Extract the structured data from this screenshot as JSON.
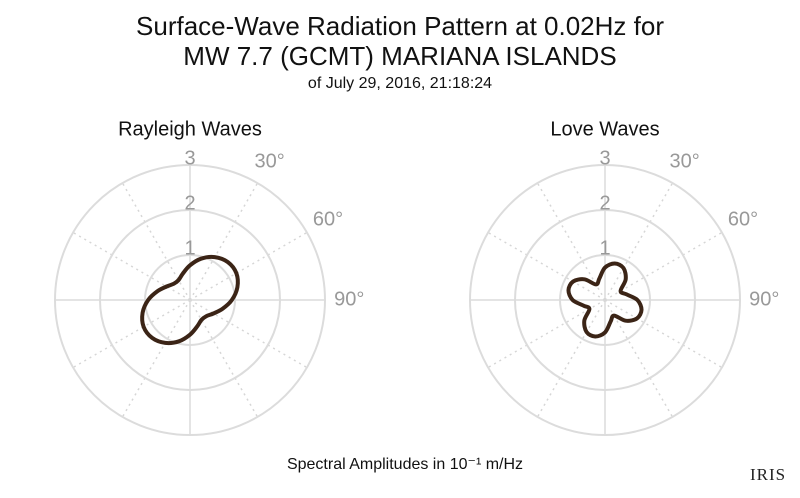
{
  "title": [
    "Surface-Wave Radiation Pattern at 0.02Hz for",
    "MW 7.7 (GCMT) MARIANA ISLANDS"
  ],
  "subtitle": "of July 29, 2016, 21:18:24",
  "caption": "Spectral Amplitudes in 10⁻¹ m/Hz",
  "logo": "IRIS",
  "chart_data": [
    {
      "type": "polar",
      "title": "Rayleigh Waves",
      "color": "#3b2416",
      "theta": [
        0,
        15,
        30,
        45,
        60,
        75,
        90,
        105,
        120,
        135,
        150,
        165,
        180,
        195,
        210,
        225,
        240,
        255,
        270,
        285,
        300,
        315,
        330,
        345
      ],
      "r": [
        0.77,
        0.95,
        1.1,
        1.19,
        1.19,
        1.09,
        0.93,
        0.75,
        0.6,
        0.51,
        0.51,
        0.61,
        0.77,
        0.95,
        1.1,
        1.19,
        1.19,
        1.09,
        0.93,
        0.75,
        0.6,
        0.51,
        0.51,
        0.61
      ],
      "rlim": [
        0,
        3
      ],
      "rticks": [
        1,
        2,
        3
      ],
      "thetaticks": [
        {
          "value": 30,
          "label": "30°"
        },
        {
          "value": 60,
          "label": "60°"
        },
        {
          "value": 90,
          "label": "90°"
        }
      ],
      "theta_grid_step": 30,
      "direction": "clockwise"
    },
    {
      "type": "polar",
      "title": "Love Waves",
      "color": "#3b2416",
      "theta": [
        0,
        15,
        30,
        45,
        60,
        75,
        90,
        105,
        120,
        135,
        150,
        165,
        180,
        195,
        210,
        225,
        240,
        255,
        270,
        285,
        300,
        315,
        330,
        345
      ],
      "r": [
        0.72,
        0.84,
        0.82,
        0.65,
        0.4,
        0.49,
        0.72,
        0.84,
        0.82,
        0.65,
        0.4,
        0.49,
        0.72,
        0.84,
        0.82,
        0.65,
        0.4,
        0.49,
        0.72,
        0.84,
        0.82,
        0.65,
        0.4,
        0.49
      ],
      "rlim": [
        0,
        3
      ],
      "rticks": [
        1,
        2,
        3
      ],
      "thetaticks": [
        {
          "value": 30,
          "label": "30°"
        },
        {
          "value": 60,
          "label": "60°"
        },
        {
          "value": 90,
          "label": "90°"
        }
      ],
      "theta_grid_step": 30,
      "direction": "clockwise"
    }
  ]
}
